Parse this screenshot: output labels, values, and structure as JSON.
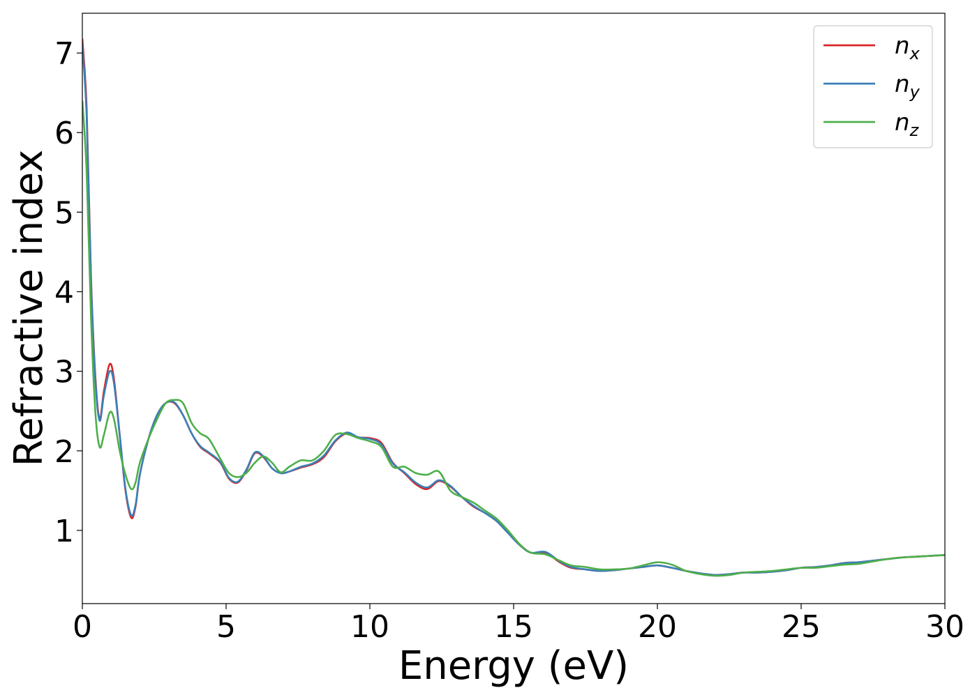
{
  "chart_data": {
    "type": "line",
    "xlabel": "Energy (eV)",
    "ylabel": "Refractive index",
    "xlim": [
      0,
      30
    ],
    "ylim": [
      0.08,
      7.5
    ],
    "xticks": [
      0,
      5,
      10,
      15,
      20,
      25,
      30
    ],
    "yticks": [
      1,
      2,
      3,
      4,
      5,
      6,
      7
    ],
    "grid": false,
    "legend_position": "top-right",
    "series": [
      {
        "name": "n",
        "subscript": "x",
        "color": "#d62728",
        "x": [
          0,
          0.15,
          0.3,
          0.45,
          0.6,
          0.75,
          0.95,
          1.1,
          1.3,
          1.5,
          1.7,
          1.85,
          2.0,
          2.3,
          2.6,
          2.9,
          3.2,
          3.5,
          3.8,
          4.1,
          4.4,
          4.8,
          5.1,
          5.4,
          5.7,
          6.0,
          6.3,
          6.6,
          6.9,
          7.2,
          7.6,
          8.0,
          8.4,
          8.8,
          9.2,
          9.6,
          10.0,
          10.4,
          10.8,
          11.2,
          11.6,
          12.0,
          12.4,
          12.8,
          13.2,
          13.6,
          14.0,
          14.4,
          14.8,
          15.2,
          15.6,
          16.1,
          16.6,
          17.0,
          17.5,
          18.0,
          18.5,
          19.0,
          19.5,
          20.0,
          20.5,
          21.0,
          21.5,
          22.0,
          22.5,
          23.0,
          23.5,
          24.0,
          24.5,
          25.0,
          25.5,
          26.0,
          26.5,
          27.0,
          27.5,
          28.0,
          28.5,
          29.0,
          29.5,
          30.0
        ],
        "y": [
          7.18,
          6.3,
          4.2,
          2.95,
          2.4,
          2.75,
          3.09,
          2.9,
          2.2,
          1.5,
          1.16,
          1.3,
          1.7,
          2.15,
          2.45,
          2.6,
          2.6,
          2.45,
          2.22,
          2.05,
          1.97,
          1.85,
          1.65,
          1.6,
          1.75,
          1.97,
          1.92,
          1.78,
          1.72,
          1.74,
          1.79,
          1.83,
          1.92,
          2.12,
          2.22,
          2.17,
          2.16,
          2.1,
          1.85,
          1.72,
          1.58,
          1.52,
          1.62,
          1.55,
          1.42,
          1.3,
          1.22,
          1.12,
          0.97,
          0.82,
          0.72,
          0.72,
          0.6,
          0.53,
          0.51,
          0.49,
          0.5,
          0.52,
          0.54,
          0.56,
          0.53,
          0.49,
          0.46,
          0.44,
          0.45,
          0.47,
          0.47,
          0.48,
          0.5,
          0.53,
          0.54,
          0.56,
          0.59,
          0.6,
          0.62,
          0.64,
          0.66,
          0.67,
          0.68,
          0.69
        ]
      },
      {
        "name": "n",
        "subscript": "y",
        "color": "#3a7fb8",
        "x": [
          0,
          0.15,
          0.3,
          0.45,
          0.6,
          0.75,
          0.95,
          1.1,
          1.3,
          1.5,
          1.7,
          1.85,
          2.0,
          2.3,
          2.6,
          2.9,
          3.2,
          3.5,
          3.8,
          4.1,
          4.4,
          4.8,
          5.1,
          5.4,
          5.7,
          6.0,
          6.3,
          6.6,
          6.9,
          7.2,
          7.6,
          8.0,
          8.4,
          8.8,
          9.2,
          9.6,
          10.0,
          10.4,
          10.8,
          11.2,
          11.6,
          12.0,
          12.4,
          12.8,
          13.2,
          13.6,
          14.0,
          14.4,
          14.8,
          15.2,
          15.6,
          16.1,
          16.6,
          17.0,
          17.5,
          18.0,
          18.5,
          19.0,
          19.5,
          20.0,
          20.5,
          21.0,
          21.5,
          22.0,
          22.5,
          23.0,
          23.5,
          24.0,
          24.5,
          25.0,
          25.5,
          26.0,
          26.5,
          27.0,
          27.5,
          28.0,
          28.5,
          29.0,
          29.5,
          30.0
        ],
        "y": [
          7.1,
          6.2,
          4.15,
          2.9,
          2.38,
          2.7,
          3.0,
          2.85,
          2.2,
          1.52,
          1.19,
          1.32,
          1.7,
          2.15,
          2.45,
          2.6,
          2.61,
          2.45,
          2.22,
          2.06,
          1.98,
          1.86,
          1.66,
          1.61,
          1.76,
          1.98,
          1.93,
          1.78,
          1.72,
          1.74,
          1.8,
          1.84,
          1.94,
          2.13,
          2.23,
          2.17,
          2.15,
          2.08,
          1.84,
          1.73,
          1.6,
          1.54,
          1.63,
          1.56,
          1.42,
          1.31,
          1.22,
          1.12,
          0.97,
          0.82,
          0.72,
          0.73,
          0.61,
          0.54,
          0.51,
          0.49,
          0.5,
          0.52,
          0.54,
          0.56,
          0.53,
          0.49,
          0.46,
          0.44,
          0.45,
          0.47,
          0.47,
          0.48,
          0.5,
          0.53,
          0.54,
          0.56,
          0.59,
          0.6,
          0.62,
          0.64,
          0.66,
          0.67,
          0.68,
          0.69
        ]
      },
      {
        "name": "n",
        "subscript": "z",
        "color": "#4daf4a",
        "x": [
          0,
          0.15,
          0.3,
          0.45,
          0.6,
          0.75,
          0.95,
          1.1,
          1.3,
          1.5,
          1.7,
          1.85,
          2.0,
          2.3,
          2.6,
          2.9,
          3.2,
          3.5,
          3.8,
          4.1,
          4.4,
          4.8,
          5.1,
          5.4,
          5.7,
          6.0,
          6.3,
          6.6,
          6.9,
          7.2,
          7.6,
          8.0,
          8.4,
          8.8,
          9.2,
          9.6,
          10.0,
          10.4,
          10.8,
          11.2,
          11.6,
          12.0,
          12.4,
          12.8,
          13.2,
          13.6,
          14.0,
          14.4,
          14.8,
          15.2,
          15.6,
          16.1,
          16.6,
          17.0,
          17.5,
          18.0,
          18.5,
          19.0,
          19.5,
          20.0,
          20.5,
          21.0,
          21.5,
          22.0,
          22.5,
          23.0,
          23.5,
          24.0,
          24.5,
          25.0,
          25.5,
          26.0,
          26.5,
          27.0,
          27.5,
          28.0,
          28.5,
          29.0,
          29.5,
          30.0
        ],
        "y": [
          6.4,
          5.5,
          3.7,
          2.5,
          2.05,
          2.2,
          2.48,
          2.4,
          2.0,
          1.7,
          1.52,
          1.6,
          1.85,
          2.15,
          2.4,
          2.6,
          2.64,
          2.6,
          2.35,
          2.22,
          2.15,
          1.9,
          1.72,
          1.67,
          1.72,
          1.85,
          1.93,
          1.85,
          1.73,
          1.8,
          1.88,
          1.88,
          2.0,
          2.2,
          2.21,
          2.16,
          2.12,
          2.05,
          1.8,
          1.8,
          1.72,
          1.7,
          1.74,
          1.5,
          1.42,
          1.35,
          1.25,
          1.15,
          1.0,
          0.83,
          0.72,
          0.7,
          0.62,
          0.56,
          0.54,
          0.51,
          0.51,
          0.52,
          0.56,
          0.6,
          0.57,
          0.49,
          0.45,
          0.43,
          0.44,
          0.47,
          0.48,
          0.49,
          0.51,
          0.53,
          0.53,
          0.55,
          0.57,
          0.58,
          0.61,
          0.64,
          0.66,
          0.67,
          0.68,
          0.69
        ]
      }
    ]
  }
}
